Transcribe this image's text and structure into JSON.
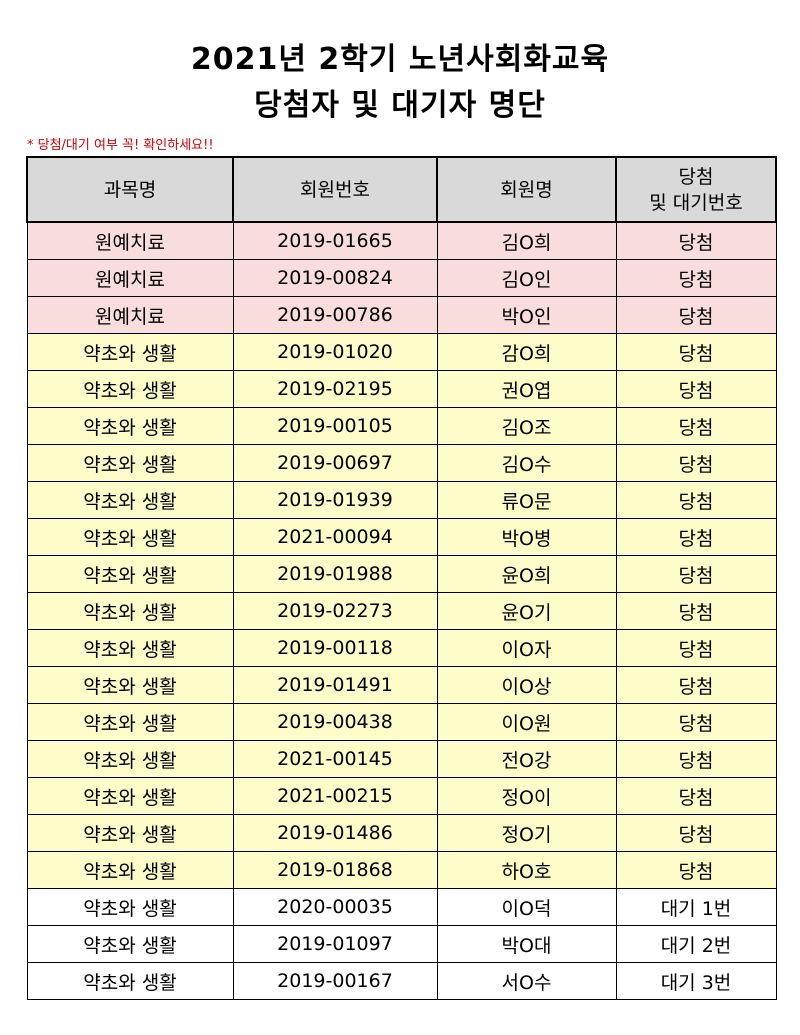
{
  "title_line1": "2021년 2학기 노년사회화교육",
  "title_line2": "당첨자 및 대기자 명단",
  "notice": "* 당첨/대기 여부 꼭! 확인하세요!!",
  "headers": {
    "course": "과목명",
    "member_no": "회원번호",
    "member_name": "회원명",
    "status_line1": "당첨",
    "status_line2": "및 대기번호"
  },
  "colors": {
    "winner_gardening": "#f9dcdc",
    "winner_herbs": "#fefcc8",
    "waitlist": "#ffffff",
    "header": "#d9d9d9",
    "notice": "#d40000"
  },
  "rows": [
    {
      "course": "원예치료",
      "no": "2019-01665",
      "name": "김O희",
      "status": "당첨"
    },
    {
      "course": "원예치료",
      "no": "2019-00824",
      "name": "김O인",
      "status": "당첨"
    },
    {
      "course": "원예치료",
      "no": "2019-00786",
      "name": "박O인",
      "status": "당첨"
    },
    {
      "course": "약초와 생활",
      "no": "2019-01020",
      "name": "감O희",
      "status": "당첨"
    },
    {
      "course": "약초와 생활",
      "no": "2019-02195",
      "name": "권O엽",
      "status": "당첨"
    },
    {
      "course": "약초와 생활",
      "no": "2019-00105",
      "name": "김O조",
      "status": "당첨"
    },
    {
      "course": "약초와 생활",
      "no": "2019-00697",
      "name": "김O수",
      "status": "당첨"
    },
    {
      "course": "약초와 생활",
      "no": "2019-01939",
      "name": "류O문",
      "status": "당첨"
    },
    {
      "course": "약초와 생활",
      "no": "2021-00094",
      "name": "박O병",
      "status": "당첨"
    },
    {
      "course": "약초와 생활",
      "no": "2019-01988",
      "name": "윤O희",
      "status": "당첨"
    },
    {
      "course": "약초와 생활",
      "no": "2019-02273",
      "name": "윤O기",
      "status": "당첨"
    },
    {
      "course": "약초와 생활",
      "no": "2019-00118",
      "name": "이O자",
      "status": "당첨"
    },
    {
      "course": "약초와 생활",
      "no": "2019-01491",
      "name": "이O상",
      "status": "당첨"
    },
    {
      "course": "약초와 생활",
      "no": "2019-00438",
      "name": "이O원",
      "status": "당첨"
    },
    {
      "course": "약초와 생활",
      "no": "2021-00145",
      "name": "전O강",
      "status": "당첨"
    },
    {
      "course": "약초와 생활",
      "no": "2021-00215",
      "name": "정O이",
      "status": "당첨"
    },
    {
      "course": "약초와 생활",
      "no": "2019-01486",
      "name": "정O기",
      "status": "당첨"
    },
    {
      "course": "약초와 생활",
      "no": "2019-01868",
      "name": "하O호",
      "status": "당첨"
    },
    {
      "course": "약초와 생활",
      "no": "2020-00035",
      "name": "이O덕",
      "status": "대기 1번"
    },
    {
      "course": "약초와 생활",
      "no": "2019-01097",
      "name": "박O대",
      "status": "대기 2번"
    },
    {
      "course": "약초와 생활",
      "no": "2019-00167",
      "name": "서O수",
      "status": "대기 3번"
    }
  ]
}
